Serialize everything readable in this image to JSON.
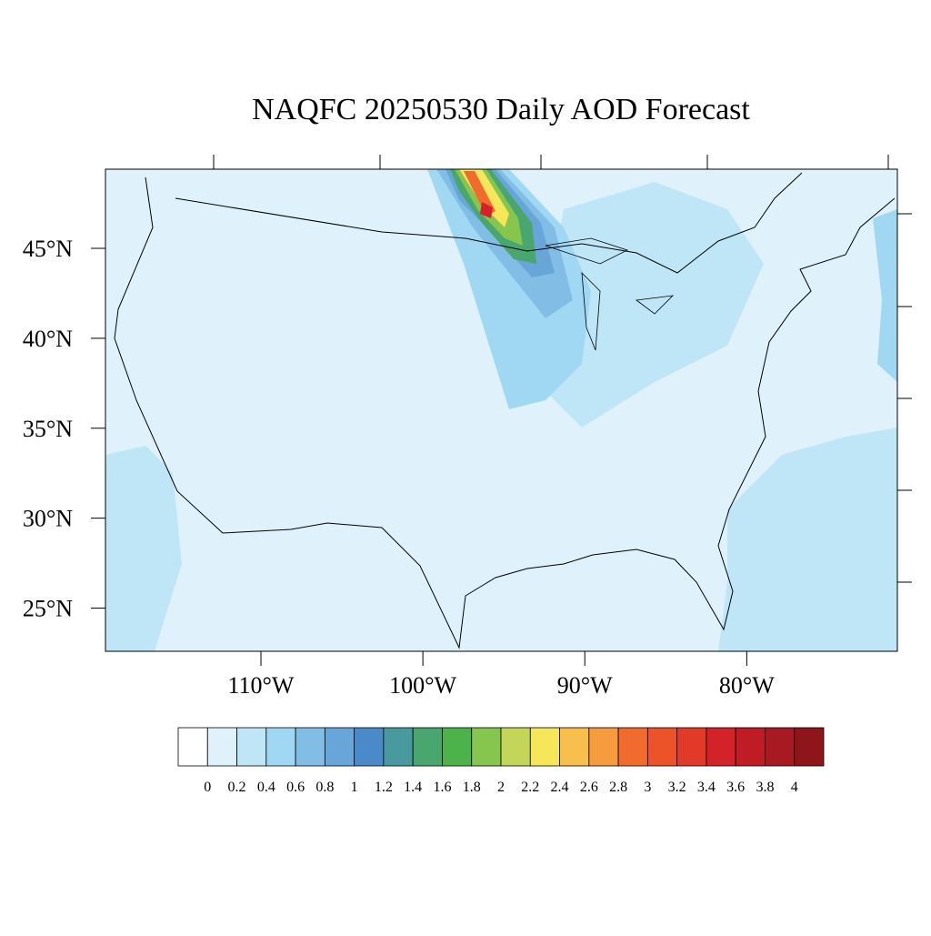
{
  "chart_data": {
    "type": "map",
    "title": "NAQFC 20250530 Daily AOD Forecast",
    "xlim": [
      -119.6,
      -70.7
    ],
    "ylim": [
      22.6,
      49.4
    ],
    "lat_ticks": [
      {
        "value": 25,
        "label": "25°N"
      },
      {
        "value": 30,
        "label": "30°N"
      },
      {
        "value": 35,
        "label": "35°N"
      },
      {
        "value": 40,
        "label": "40°N"
      },
      {
        "value": 45,
        "label": "45°N"
      }
    ],
    "lon_ticks": [
      {
        "value": -110,
        "label": "110°W"
      },
      {
        "value": -100,
        "label": "100°W"
      },
      {
        "value": -90,
        "label": "90°W"
      },
      {
        "value": -80,
        "label": "80°W"
      }
    ],
    "colorbar": {
      "levels": [
        0,
        0.2,
        0.4,
        0.6,
        0.8,
        1,
        1.2,
        1.4,
        1.6,
        1.8,
        2,
        2.2,
        2.4,
        2.6,
        2.8,
        3,
        3.2,
        3.4,
        3.6,
        3.8,
        4
      ],
      "colors": [
        "#ffffff",
        "#dff2fb",
        "#bfe6f7",
        "#a0d8f3",
        "#82bde6",
        "#68a6da",
        "#4a8ac8",
        "#489a9e",
        "#49a66f",
        "#4cb24a",
        "#86c54e",
        "#c4d65a",
        "#f5e65a",
        "#f8bf4c",
        "#f69b3e",
        "#f26b2e",
        "#ec5328",
        "#e23a28",
        "#d42229",
        "#bf1c25",
        "#a81a22",
        "#8e1519"
      ]
    }
  }
}
